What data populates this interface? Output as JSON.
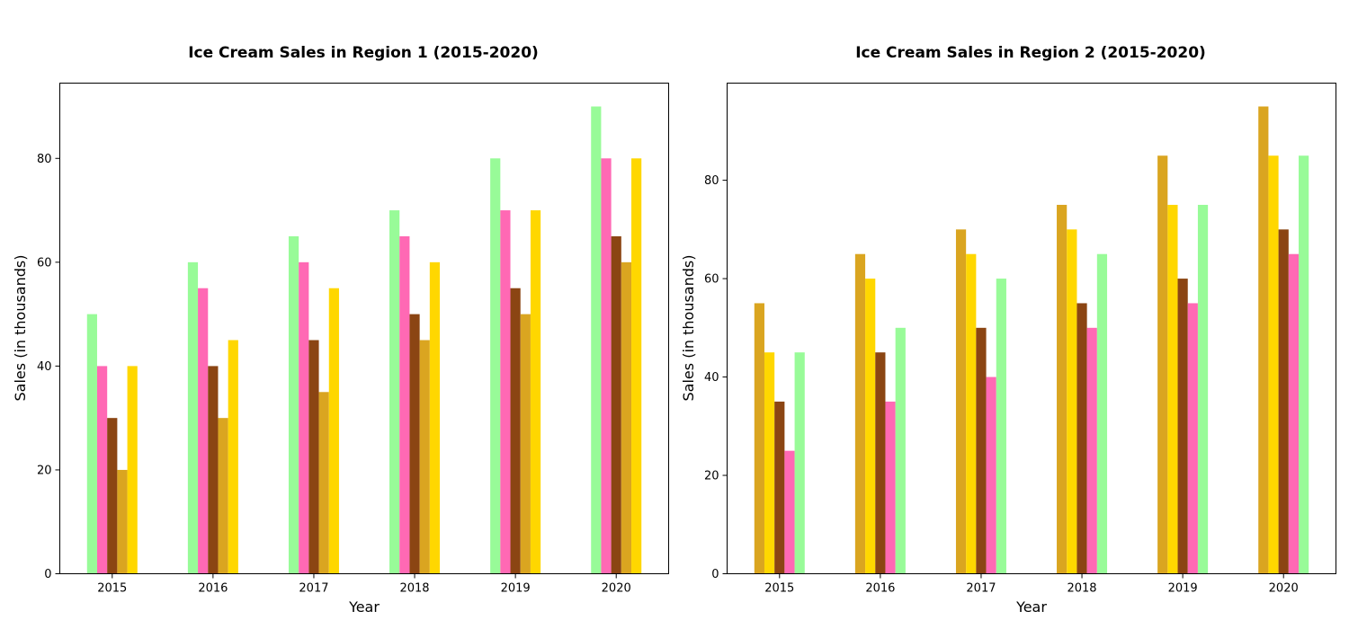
{
  "chart_data": [
    {
      "type": "bar",
      "title": "Ice Cream Sales in Region 1 (2015-2020)",
      "xlabel": "Year",
      "ylabel": "Sales (in thousands)",
      "categories": [
        "2015",
        "2016",
        "2017",
        "2018",
        "2019",
        "2020"
      ],
      "ylim": [
        0,
        94.5
      ],
      "yticks": [
        0,
        20,
        40,
        60,
        80
      ],
      "grid": false,
      "legend": "none",
      "series": [
        {
          "color": "#98FB98",
          "values": [
            50,
            60,
            65,
            70,
            80,
            90
          ]
        },
        {
          "color": "#FF69B4",
          "values": [
            40,
            55,
            60,
            65,
            70,
            80
          ]
        },
        {
          "color": "#8B4513",
          "values": [
            30,
            40,
            45,
            50,
            55,
            65
          ]
        },
        {
          "color": "#DAA520",
          "values": [
            20,
            30,
            35,
            45,
            50,
            60
          ]
        },
        {
          "color": "#FFD700",
          "values": [
            40,
            45,
            55,
            60,
            70,
            80
          ]
        }
      ]
    },
    {
      "type": "bar",
      "title": "Ice Cream Sales in Region 2 (2015-2020)",
      "xlabel": "Year",
      "ylabel": "Sales (in thousands)",
      "categories": [
        "2015",
        "2016",
        "2017",
        "2018",
        "2019",
        "2020"
      ],
      "ylim": [
        0,
        99.75
      ],
      "yticks": [
        0,
        20,
        40,
        60,
        80
      ],
      "grid": false,
      "legend": "none",
      "series": [
        {
          "color": "#DAA520",
          "values": [
            55,
            65,
            70,
            75,
            85,
            95
          ]
        },
        {
          "color": "#FFD700",
          "values": [
            45,
            60,
            65,
            70,
            75,
            85
          ]
        },
        {
          "color": "#8B4513",
          "values": [
            35,
            45,
            50,
            55,
            60,
            70
          ]
        },
        {
          "color": "#FF69B4",
          "values": [
            25,
            35,
            40,
            50,
            55,
            65
          ]
        },
        {
          "color": "#98FB98",
          "values": [
            45,
            50,
            60,
            65,
            75,
            85
          ]
        }
      ]
    }
  ]
}
